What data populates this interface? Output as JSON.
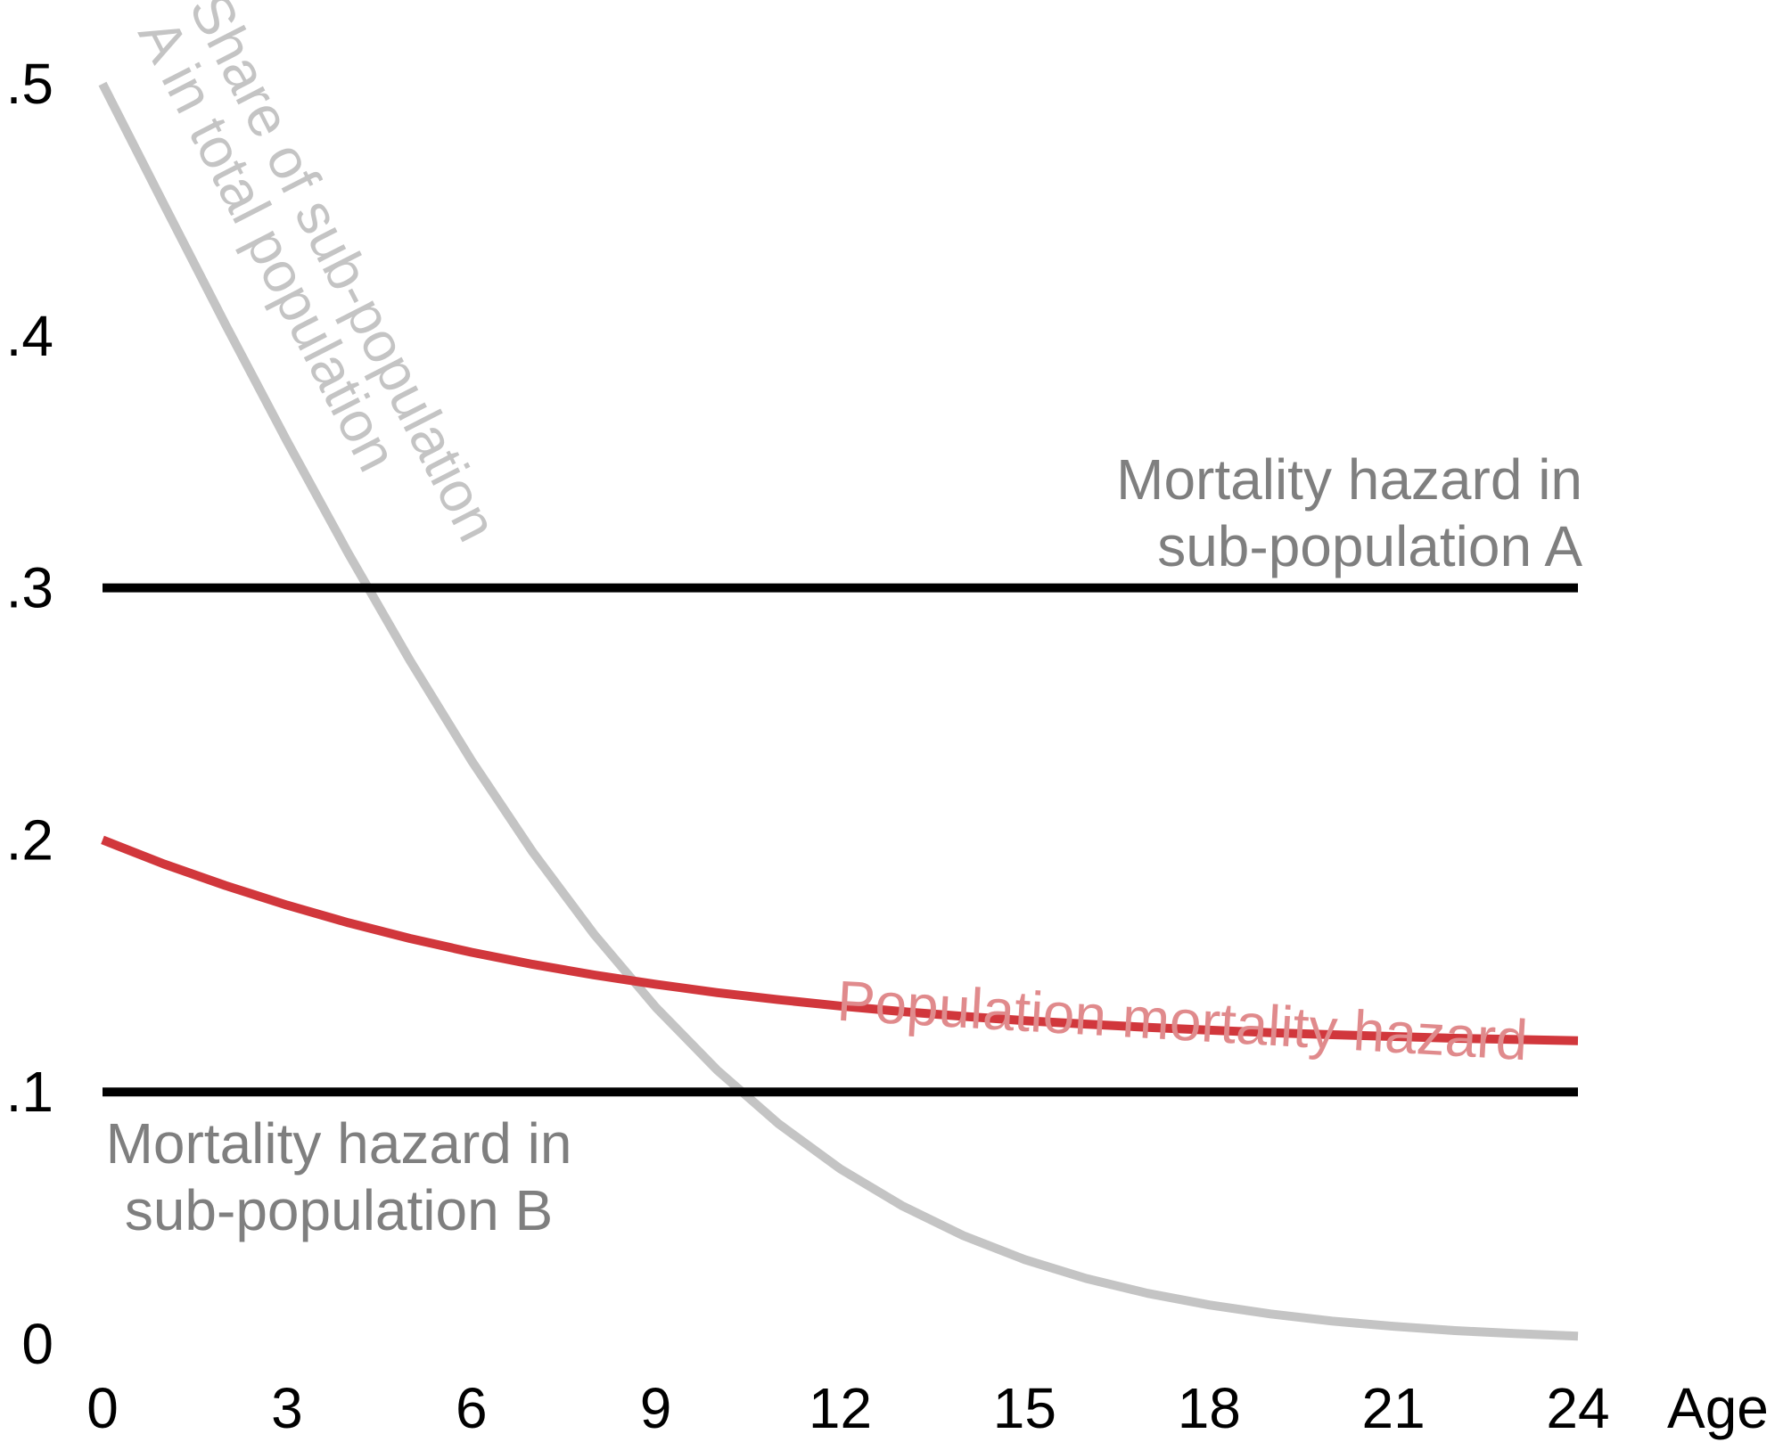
{
  "chart_data": {
    "type": "line",
    "title": "",
    "xlabel": "Age",
    "ylabel": "",
    "xlim": [
      0,
      24
    ],
    "ylim": [
      0,
      0.5
    ],
    "x_ticks": [
      0,
      3,
      6,
      9,
      12,
      15,
      18,
      21,
      24
    ],
    "y_ticks": [
      0,
      0.1,
      0.2,
      0.3,
      0.4,
      0.5
    ],
    "x_tick_labels": [
      "0",
      "3",
      "6",
      "9",
      "12",
      "15",
      "18",
      "21",
      "24"
    ],
    "y_tick_labels": [
      "0",
      ".1",
      ".2",
      ".3",
      ".4",
      ".5"
    ],
    "grid": false,
    "series": [
      {
        "name": "Mortality hazard in sub-population A",
        "label_lines": [
          "Mortality hazard in",
          "sub-population A"
        ],
        "color": "#000000",
        "x": [
          0,
          24
        ],
        "y": [
          0.3,
          0.3
        ]
      },
      {
        "name": "Mortality hazard in sub-population B",
        "label_lines": [
          "Mortality hazard in",
          "sub-population B"
        ],
        "color": "#000000",
        "x": [
          0,
          24
        ],
        "y": [
          0.1,
          0.1
        ]
      },
      {
        "name": "Population mortality hazard",
        "label_lines": [
          "Population mortality hazard"
        ],
        "color": "#d1373c",
        "label_color": "#e08a8c",
        "x": [
          0,
          1,
          2,
          3,
          4,
          5,
          6,
          7,
          8,
          9,
          10,
          11,
          12,
          13,
          14,
          15,
          16,
          17,
          18,
          19,
          20,
          21,
          22,
          23,
          24
        ],
        "y": [
          0.2,
          0.1904,
          0.1819,
          0.1741,
          0.1671,
          0.1609,
          0.1554,
          0.1506,
          0.1464,
          0.1427,
          0.1394,
          0.1366,
          0.1341,
          0.1319,
          0.13,
          0.1283,
          0.1269,
          0.1256,
          0.1245,
          0.1235,
          0.1227,
          0.122,
          0.1213,
          0.1208,
          0.1203
        ]
      },
      {
        "name": "Share of sub-population A in total population",
        "label_lines": [
          "Share of sub-population",
          "A in total population"
        ],
        "color": "#c4c4c4",
        "x": [
          0,
          1,
          2,
          3,
          4,
          5,
          6,
          7,
          8,
          9,
          10,
          11,
          12,
          13,
          14,
          15,
          16,
          17,
          18,
          19,
          20,
          21,
          22,
          23,
          24
        ],
        "y": [
          0.5,
          0.452,
          0.4045,
          0.3582,
          0.3136,
          0.2712,
          0.2315,
          0.1951,
          0.1624,
          0.1336,
          0.1086,
          0.0873,
          0.0695,
          0.0549,
          0.043,
          0.0335,
          0.026,
          0.0201,
          0.0155,
          0.0119,
          0.0091,
          0.007,
          0.0053,
          0.0041,
          0.0031
        ]
      }
    ]
  }
}
